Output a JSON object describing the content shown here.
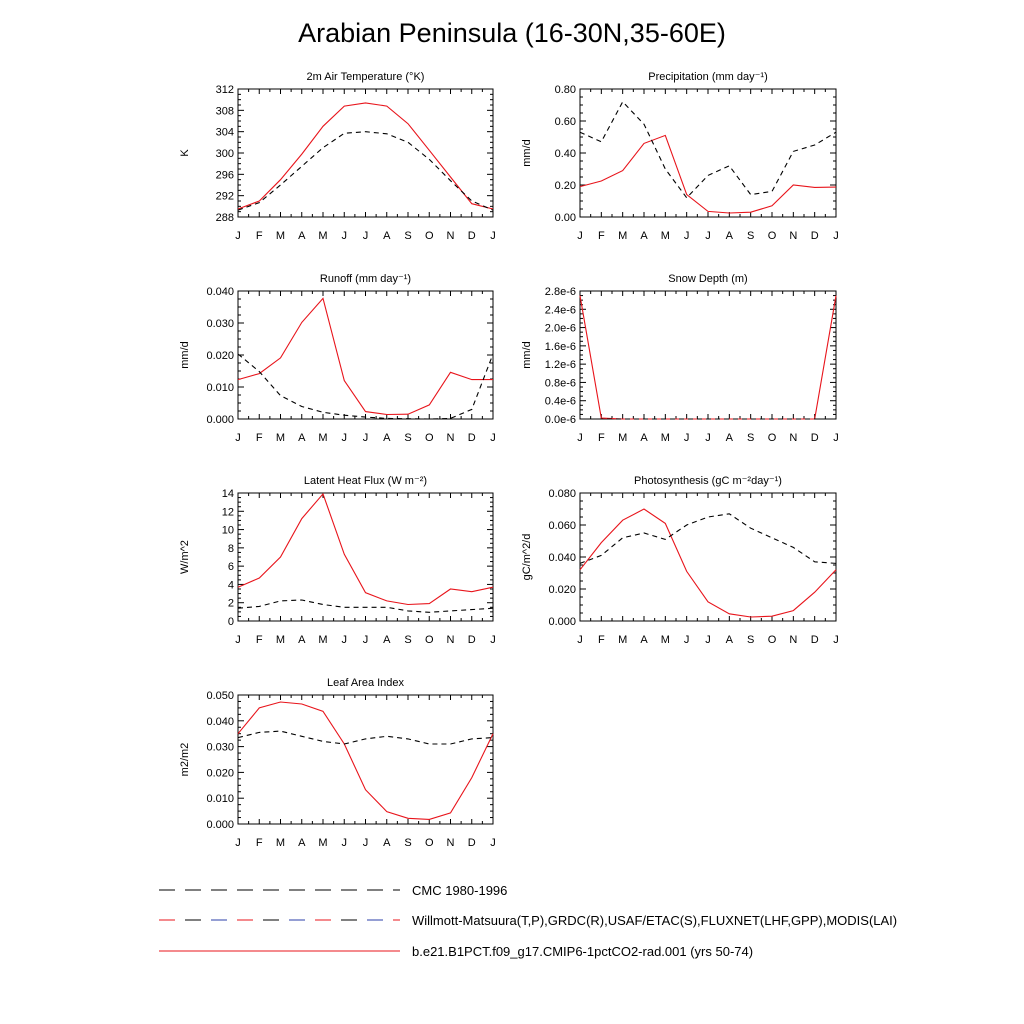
{
  "title": "Arabian Peninsula (16-30N,35-60E)",
  "months": [
    "J",
    "F",
    "M",
    "A",
    "M",
    "J",
    "J",
    "A",
    "S",
    "O",
    "N",
    "D",
    "J"
  ],
  "colors": {
    "model": "#e8141b",
    "obs": "#000000",
    "obs_alt_segments": "#2b3fa8"
  },
  "legend": [
    {
      "label": "CMC 1980-1996",
      "style": "dashed-black"
    },
    {
      "label": "Willmott-Matsuura(T,P),GRDC(R),USAF/ETAC(S),FLUXNET(LHF,GPP),MODIS(LAI)",
      "style": "dashed-multicolor"
    },
    {
      "label": "b.e21.B1PCT.f09_g17.CMIP6-1pctCO2-rad.001 (yrs 50-74)",
      "style": "solid-red"
    }
  ],
  "chart_data": [
    {
      "type": "line",
      "title": "2m Air Temperature (°K)",
      "ylabel": "K",
      "ylim": [
        288,
        312
      ],
      "yticks": [
        "288",
        "292",
        "296",
        "300",
        "304",
        "308",
        "312"
      ],
      "series": [
        {
          "style": "solid-red",
          "values": [
            289.5,
            291.0,
            295.0,
            299.8,
            305.0,
            308.8,
            309.4,
            308.8,
            305.5,
            300.5,
            295.5,
            290.5,
            289.5
          ]
        },
        {
          "style": "dashed",
          "values": [
            289.3,
            290.7,
            294.0,
            297.5,
            301.0,
            303.7,
            304.0,
            303.6,
            302.0,
            298.8,
            294.8,
            291.0,
            289.3
          ]
        }
      ]
    },
    {
      "type": "line",
      "title": "Precipitation (mm day⁻¹)",
      "ylabel": "mm/d",
      "ylim": [
        0,
        0.8
      ],
      "yticks": [
        "0.00",
        "0.20",
        "0.40",
        "0.60",
        "0.80"
      ],
      "series": [
        {
          "style": "solid-red",
          "values": [
            0.19,
            0.225,
            0.29,
            0.46,
            0.51,
            0.14,
            0.035,
            0.025,
            0.03,
            0.07,
            0.2,
            0.185,
            0.187
          ]
        },
        {
          "style": "dashed",
          "values": [
            0.53,
            0.47,
            0.72,
            0.58,
            0.3,
            0.12,
            0.26,
            0.32,
            0.14,
            0.16,
            0.41,
            0.45,
            0.53
          ]
        }
      ]
    },
    {
      "type": "line",
      "title": "Runoff (mm day⁻¹)",
      "ylabel": "mm/d",
      "ylim": [
        0,
        0.04
      ],
      "yticks": [
        "0.000",
        "0.010",
        "0.020",
        "0.030",
        "0.040"
      ],
      "series": [
        {
          "style": "solid-red",
          "values": [
            0.0123,
            0.0142,
            0.0191,
            0.0302,
            0.0377,
            0.012,
            0.0023,
            0.0014,
            0.0015,
            0.0044,
            0.0146,
            0.0123,
            0.0123
          ]
        },
        {
          "style": "dashed",
          "values": [
            0.0203,
            0.0148,
            0.0073,
            0.0039,
            0.0021,
            0.0012,
            0.0006,
            0.0002,
            0.0001,
            0.0,
            0.0002,
            0.003,
            0.0203
          ]
        }
      ]
    },
    {
      "type": "line",
      "title": "Snow Depth (m)",
      "ylabel": "mm/d",
      "ylim": [
        0,
        2.8e-06
      ],
      "yticks": [
        "0.0e-6",
        "0.4e-6",
        "0.8e-6",
        "1.2e-6",
        "1.6e-6",
        "2.0e-6",
        "2.4e-6",
        "2.8e-6"
      ],
      "series": [
        {
          "style": "solid-red",
          "values": [
            2.7e-06,
            2e-08,
            0.0,
            0.0,
            0.0,
            0.0,
            0.0,
            0.0,
            0.0,
            0.0,
            0.0,
            0.0,
            2.7e-06
          ]
        },
        {
          "style": "dashed",
          "values": [
            0,
            0,
            0,
            0,
            0,
            0,
            0,
            0,
            0,
            0,
            0,
            0,
            0
          ]
        }
      ]
    },
    {
      "type": "line",
      "title": "Latent Heat Flux (W m⁻²)",
      "ylabel": "W/m^2",
      "ylim": [
        0,
        14
      ],
      "yticks": [
        "0",
        "2",
        "4",
        "6",
        "8",
        "10",
        "12",
        "14"
      ],
      "series": [
        {
          "style": "solid-red",
          "values": [
            3.7,
            4.7,
            7.0,
            11.2,
            13.9,
            7.3,
            3.1,
            2.2,
            1.8,
            1.9,
            3.5,
            3.2,
            3.7
          ]
        },
        {
          "style": "dashed",
          "values": [
            1.4,
            1.6,
            2.2,
            2.3,
            1.8,
            1.5,
            1.5,
            1.5,
            1.1,
            0.95,
            1.1,
            1.25,
            1.4
          ]
        }
      ]
    },
    {
      "type": "line",
      "title": "Photosynthesis (gC m⁻²day⁻¹)",
      "ylabel": "gC/m^2/d",
      "ylim": [
        0,
        0.08
      ],
      "yticks": [
        "0.000",
        "0.020",
        "0.040",
        "0.060",
        "0.080"
      ],
      "series": [
        {
          "style": "solid-red",
          "values": [
            0.032,
            0.049,
            0.063,
            0.07,
            0.061,
            0.031,
            0.012,
            0.0045,
            0.0025,
            0.003,
            0.0065,
            0.018,
            0.032
          ]
        },
        {
          "style": "dashed",
          "values": [
            0.036,
            0.041,
            0.052,
            0.055,
            0.051,
            0.06,
            0.065,
            0.067,
            0.058,
            0.052,
            0.046,
            0.037,
            0.036
          ]
        }
      ]
    },
    {
      "type": "line",
      "title": "Leaf Area Index",
      "ylabel": "m2/m2",
      "ylim": [
        0,
        0.05
      ],
      "yticks": [
        "0.000",
        "0.010",
        "0.020",
        "0.030",
        "0.040",
        "0.050"
      ],
      "series": [
        {
          "style": "solid-red",
          "values": [
            0.035,
            0.045,
            0.0473,
            0.0465,
            0.0437,
            0.031,
            0.0133,
            0.0048,
            0.0022,
            0.0018,
            0.0043,
            0.018,
            0.035
          ]
        },
        {
          "style": "dashed",
          "values": [
            0.0335,
            0.0355,
            0.036,
            0.034,
            0.032,
            0.031,
            0.033,
            0.034,
            0.033,
            0.031,
            0.031,
            0.033,
            0.0335
          ]
        }
      ]
    }
  ]
}
